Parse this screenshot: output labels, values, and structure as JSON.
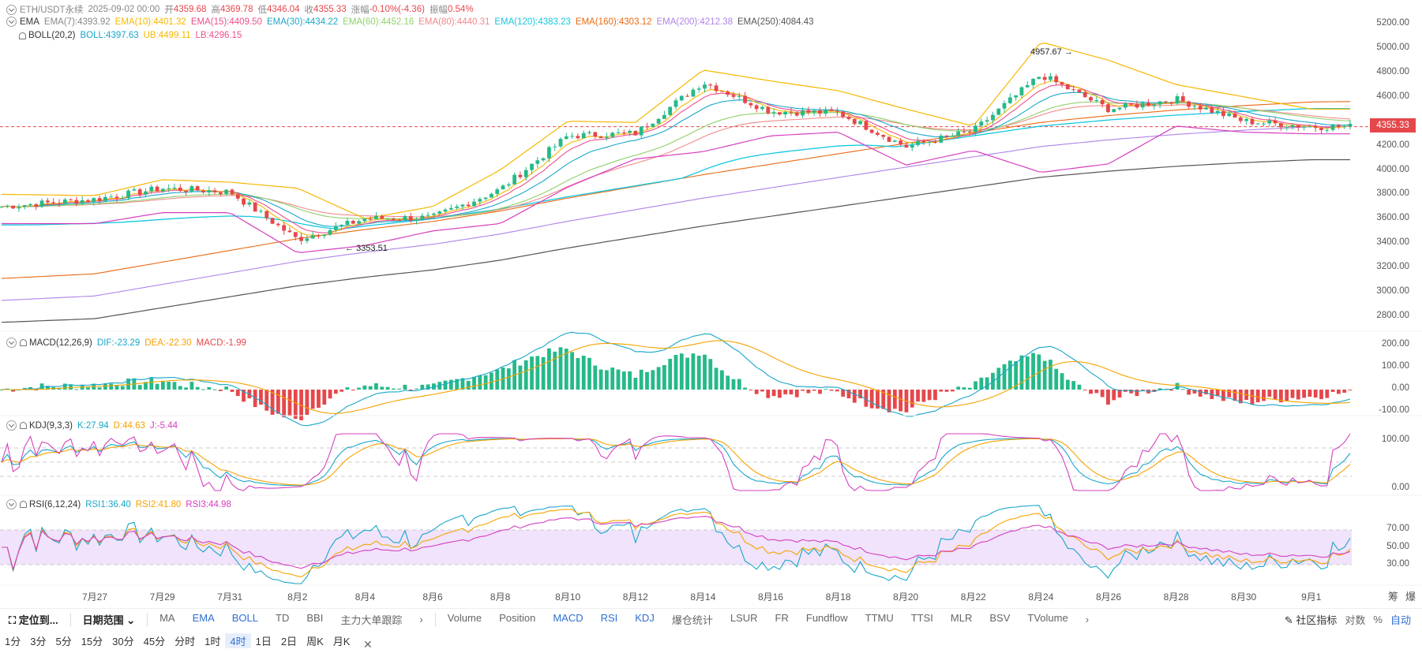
{
  "header": {
    "symbol": "ETH/USDT永续",
    "datetime": "2025-09-02 00:00",
    "open_label": "开",
    "open": "4359.68",
    "high_label": "高",
    "high": "4369.78",
    "low_label": "低",
    "low": "4346.04",
    "close_label": "收",
    "close": "4355.33",
    "change_label": "涨幅",
    "change": "-0.10%(-4.36)",
    "amp_label": "振幅",
    "amp": "0.54%"
  },
  "ema_legend": {
    "name": "EMA",
    "items": [
      {
        "text": "EMA(7):4393.92",
        "color": "#888888"
      },
      {
        "text": "EMA(10):4401.32",
        "color": "#f5b800"
      },
      {
        "text": "EMA(15):4409.50",
        "color": "#ee4f8c"
      },
      {
        "text": "EMA(30):4434.22",
        "color": "#1aa6c9"
      },
      {
        "text": "EMA(60):4452.16",
        "color": "#8fd16a"
      },
      {
        "text": "EMA(80):4440.31",
        "color": "#f08a8a"
      },
      {
        "text": "EMA(120):4383.23",
        "color": "#14c8e0"
      },
      {
        "text": "EMA(160):4303.12",
        "color": "#e86a14"
      },
      {
        "text": "EMA(200):4212.38",
        "color": "#b083e8"
      },
      {
        "text": "EMA(250):4084.43",
        "color": "#555555"
      }
    ]
  },
  "boll_legend": {
    "name": "BOLL(20,2)",
    "items": [
      {
        "text": "BOLL:4397.63",
        "color": "#1aa6c9"
      },
      {
        "text": "UB:4499.11",
        "color": "#f5b800"
      },
      {
        "text": "LB:4296.15",
        "color": "#ee4f8c"
      }
    ]
  },
  "macd_legend": {
    "name": "MACD(12,26,9)",
    "items": [
      {
        "text": "DIF:-23.29",
        "color": "#1aa6c9"
      },
      {
        "text": "DEA:-22.30",
        "color": "#f5a300"
      },
      {
        "text": "MACD:-1.99",
        "color": "#e5474b"
      }
    ]
  },
  "kdj_legend": {
    "name": "KDJ(9,3,3)",
    "items": [
      {
        "text": "K:27.94",
        "color": "#1aa6c9"
      },
      {
        "text": "D:44.63",
        "color": "#f5a300"
      },
      {
        "text": "J:-5.44",
        "color": "#d63fbf"
      }
    ]
  },
  "rsi_legend": {
    "name": "RSI(6,12,24)",
    "items": [
      {
        "text": "RSI1:36.40",
        "color": "#1aa6c9"
      },
      {
        "text": "RSI2:41.80",
        "color": "#f5a300"
      },
      {
        "text": "RSI3:44.98",
        "color": "#d63fbf"
      }
    ]
  },
  "price_axis": [
    "5200.00",
    "5000.00",
    "4800.00",
    "4600.00",
    "4200.00",
    "4000.00",
    "3800.00",
    "3600.00",
    "3400.00",
    "3200.00",
    "3000.00",
    "2800.00"
  ],
  "current_price": "4355.33",
  "high_mark": "4957.67",
  "low_mark": "3353.51",
  "macd_axis": [
    "200.00",
    "100.00",
    "0.00",
    "-100.00"
  ],
  "kdj_axis": [
    "100.00",
    "0.00"
  ],
  "rsi_axis": [
    "70.00",
    "50.00",
    "30.00"
  ],
  "x_axis": [
    "7月27",
    "7月29",
    "7月31",
    "8月2",
    "8月4",
    "8月6",
    "8月8",
    "8月10",
    "8月12",
    "8月14",
    "8月16",
    "8月18",
    "8月20",
    "8月22",
    "8月24",
    "8月26",
    "8月28",
    "8月30",
    "9月1"
  ],
  "corner_labels": [
    "筹",
    "爆"
  ],
  "toolbar": {
    "locate": "定位到...",
    "date_range": "日期范围",
    "main_indicators": [
      "MA",
      "EMA",
      "BOLL",
      "TD",
      "BBI",
      "主力大单跟踪"
    ],
    "sub_indicators": [
      "Volume",
      "Position",
      "MACD",
      "RSI",
      "KDJ",
      "爆仓统计",
      "LSUR",
      "FR",
      "Fundflow",
      "TTMU",
      "TTSI",
      "MLR",
      "BSV",
      "TVolume"
    ],
    "community": "社区指标",
    "log": "对数",
    "percent": "%",
    "auto": "自动"
  },
  "periods": [
    "1分",
    "3分",
    "5分",
    "15分",
    "30分",
    "45分",
    "分时",
    "1时",
    "4时",
    "1日",
    "2日",
    "周K",
    "月K"
  ],
  "active_period": "4时",
  "colors": {
    "up": "#26b98a",
    "down": "#e5474b",
    "accent": "#2f6fd1"
  },
  "chart_data": {
    "type": "candlestick",
    "title": "ETH/USDT永续",
    "x": [
      "7月27",
      "7月29",
      "7月31",
      "8月2",
      "8月4",
      "8月6",
      "8月8",
      "8月10",
      "8月12",
      "8月14",
      "8月16",
      "8月18",
      "8月20",
      "8月22",
      "8月24",
      "8月26",
      "8月28",
      "8月30",
      "9月1"
    ],
    "close_approx": [
      3760,
      3850,
      3820,
      3430,
      3600,
      3610,
      3840,
      4280,
      4300,
      4720,
      4480,
      4470,
      4190,
      4320,
      4780,
      4500,
      4580,
      4400,
      4355
    ],
    "ylim": [
      2750,
      5250
    ],
    "series": [
      {
        "name": "UB",
        "values": [
          3790,
          3920,
          3900,
          3850,
          3600,
          3700,
          4000,
          4400,
          4390,
          4820,
          4730,
          4650,
          4500,
          4360,
          5050,
          4900,
          4700,
          4600,
          4499
        ]
      },
      {
        "name": "LB",
        "values": [
          3560,
          3650,
          3650,
          3320,
          3380,
          3500,
          3560,
          3860,
          4090,
          4150,
          4280,
          4310,
          4040,
          4160,
          3980,
          4050,
          4360,
          4310,
          4296
        ]
      },
      {
        "name": "EMA(250)",
        "values": [
          2780,
          2870,
          2960,
          3050,
          3120,
          3180,
          3260,
          3360,
          3450,
          3540,
          3620,
          3700,
          3780,
          3860,
          3940,
          3990,
          4030,
          4060,
          4084
        ]
      }
    ]
  }
}
